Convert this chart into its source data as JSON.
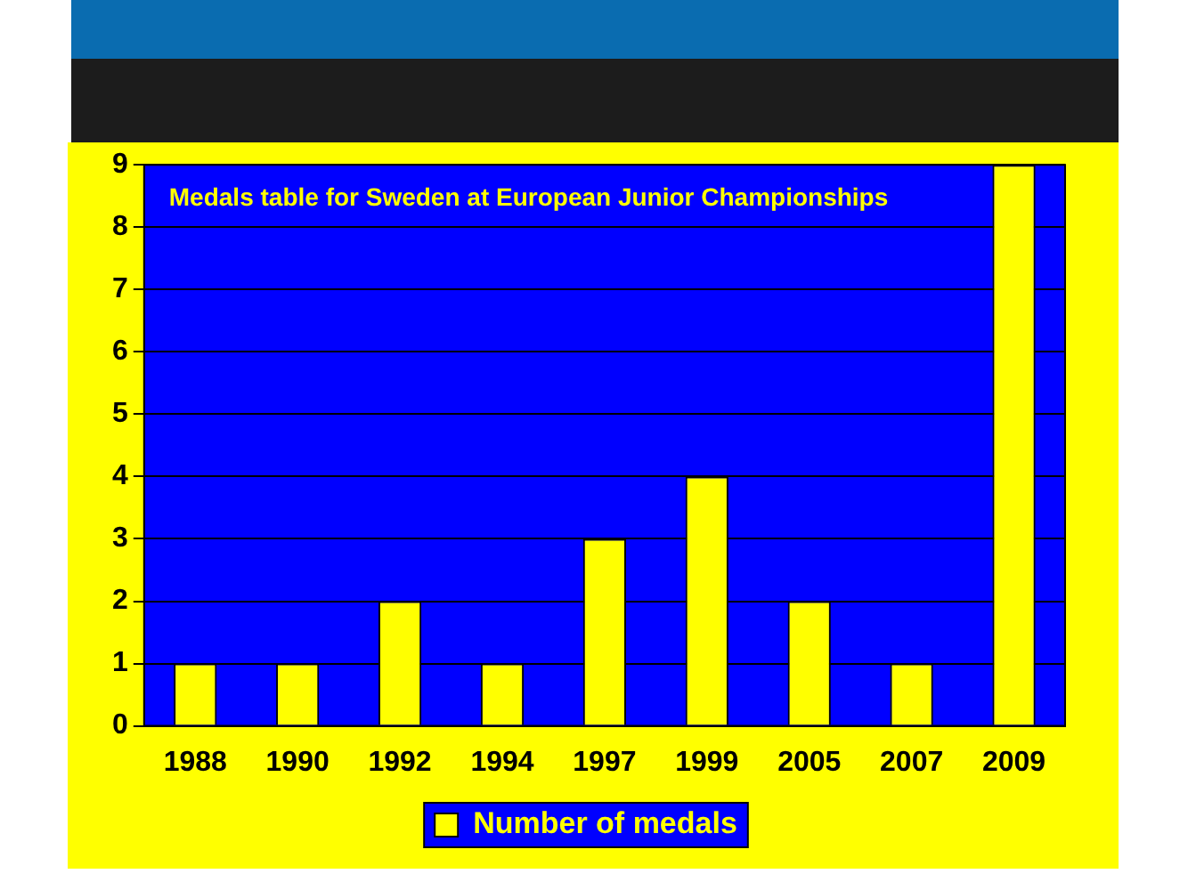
{
  "chart_data": {
    "type": "bar",
    "title": "Medals table for Sweden at European Junior Championships",
    "categories": [
      "1988",
      "1990",
      "1992",
      "1994",
      "1997",
      "1999",
      "2005",
      "2007",
      "2009"
    ],
    "series": [
      {
        "name": "Number of medals",
        "color": "#ffff00",
        "values": [
          1,
          1,
          2,
          1,
          3,
          4,
          2,
          1,
          9
        ]
      }
    ],
    "ylim": [
      0,
      9
    ],
    "yticks": [
      0,
      1,
      2,
      3,
      4,
      5,
      6,
      7,
      8,
      9
    ],
    "grid": "y",
    "legend": "bottom"
  }
}
